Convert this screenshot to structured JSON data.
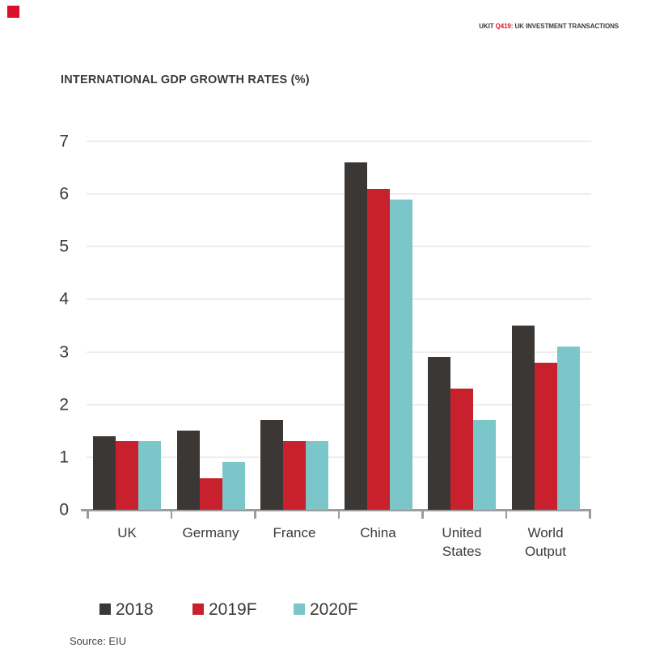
{
  "page": {
    "header": {
      "brand_prefix": "UKIT ",
      "brand_highlight": "Q419:",
      "brand_suffix": " UK INVESTMENT TRANSACTIONS"
    },
    "title": "INTERNATIONAL GDP GROWTH RATES (%)",
    "source": "Source: EIU"
  },
  "colors": {
    "accent_red": "#d8112a",
    "bar_dark": "#3b3735",
    "bar_red": "#c9202e",
    "bar_teal": "#7ac6c9",
    "gridline": "#ededed",
    "axis_gray": "#9b9b9b",
    "text_dark": "#3d3935"
  },
  "chart_data": {
    "type": "bar",
    "title": "INTERNATIONAL GDP GROWTH RATES (%)",
    "categories": [
      "UK",
      "Germany",
      "France",
      "China",
      "United States",
      "World Output"
    ],
    "series": [
      {
        "name": "2018",
        "color": "#3b3735",
        "values": [
          1.4,
          1.5,
          1.7,
          6.6,
          2.9,
          3.5
        ]
      },
      {
        "name": "2019F",
        "color": "#c9202e",
        "values": [
          1.3,
          0.6,
          1.3,
          6.1,
          2.3,
          2.8
        ]
      },
      {
        "name": "2020F",
        "color": "#7ac6c9",
        "values": [
          1.3,
          0.9,
          1.3,
          5.9,
          1.7,
          3.1
        ]
      }
    ],
    "ylabel": "",
    "xlabel": "",
    "ylim": [
      0,
      7
    ],
    "yticks": [
      0,
      1,
      2,
      3,
      4,
      5,
      6,
      7
    ],
    "grid": "horizontal",
    "legend_position": "bottom",
    "source": "Source: EIU"
  }
}
